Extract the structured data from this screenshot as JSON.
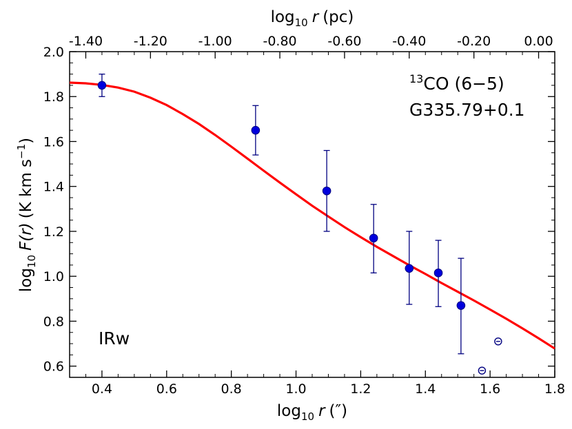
{
  "chart_data": {
    "type": "scatter",
    "xlabel": {
      "base": "log",
      "sub": "10",
      "var": "r",
      "unit": "(″)"
    },
    "ylabel": {
      "base": "log",
      "sub": "10",
      "func": "F(r)",
      "unit_pre": "(K km s",
      "unit_exp": "−1",
      "unit_post": ")"
    },
    "top_xlabel": {
      "base": "log",
      "sub": "10",
      "var": "r",
      "unit": "(pc)"
    },
    "xlim": [
      0.3,
      1.8
    ],
    "ylim": [
      0.55,
      2.0
    ],
    "top_xlim": [
      -1.45,
      0.05
    ],
    "x_ticks": [
      0.4,
      0.6,
      0.8,
      1.0,
      1.2,
      1.4,
      1.6,
      1.8
    ],
    "x_tick_labels": [
      "0.4",
      "0.6",
      "0.8",
      "1.0",
      "1.2",
      "1.4",
      "1.6",
      "1.8"
    ],
    "y_ticks": [
      0.6,
      0.8,
      1.0,
      1.2,
      1.4,
      1.6,
      1.8,
      2.0
    ],
    "y_tick_labels": [
      "0.6",
      "0.8",
      "1.0",
      "1.2",
      "1.4",
      "1.6",
      "1.8",
      "2.0"
    ],
    "top_ticks": [
      -1.4,
      -1.2,
      -1.0,
      -0.8,
      -0.6,
      -0.4,
      -0.2,
      0.0
    ],
    "top_tick_labels": [
      "-1.40",
      "-1.20",
      "-1.00",
      "-0.80",
      "-0.60",
      "-0.40",
      "-0.20",
      "0.00"
    ],
    "series": [
      {
        "name": "data",
        "color": "#0000dd",
        "points": [
          {
            "x": 0.4,
            "y": 1.85,
            "err_low": 1.8,
            "err_high": 1.9
          },
          {
            "x": 0.875,
            "y": 1.65,
            "err_low": 1.54,
            "err_high": 1.76
          },
          {
            "x": 1.095,
            "y": 1.38,
            "err_low": 1.2,
            "err_high": 1.56
          },
          {
            "x": 1.24,
            "y": 1.17,
            "err_low": 1.015,
            "err_high": 1.32
          },
          {
            "x": 1.35,
            "y": 1.035,
            "err_low": 0.875,
            "err_high": 1.2
          },
          {
            "x": 1.44,
            "y": 1.015,
            "err_low": 0.865,
            "err_high": 1.16
          },
          {
            "x": 1.51,
            "y": 0.87,
            "err_low": 0.655,
            "err_high": 1.08
          }
        ]
      },
      {
        "name": "upper limits",
        "color": "#000080",
        "points": [
          {
            "x": 1.575,
            "y": 0.58
          },
          {
            "x": 1.625,
            "y": 0.71
          }
        ]
      },
      {
        "name": "fit",
        "color": "#ff0000",
        "x": [
          0.3,
          0.35,
          0.4,
          0.45,
          0.5,
          0.55,
          0.6,
          0.65,
          0.7,
          0.75,
          0.8,
          0.85,
          0.9,
          0.95,
          1.0,
          1.05,
          1.1,
          1.15,
          1.2,
          1.25,
          1.3,
          1.35,
          1.4,
          1.45,
          1.5,
          1.55,
          1.6,
          1.65,
          1.7,
          1.75,
          1.8
        ],
        "y": [
          1.862,
          1.859,
          1.852,
          1.84,
          1.822,
          1.795,
          1.762,
          1.722,
          1.678,
          1.629,
          1.577,
          1.524,
          1.47,
          1.417,
          1.365,
          1.314,
          1.266,
          1.219,
          1.174,
          1.131,
          1.09,
          1.049,
          1.01,
          0.97,
          0.931,
          0.892,
          0.852,
          0.811,
          0.768,
          0.724,
          0.678
        ]
      }
    ],
    "annotations": {
      "line_sup": "13",
      "line": "CO (6−5)",
      "source": "G335.79+0.1",
      "label": "IRw"
    }
  }
}
